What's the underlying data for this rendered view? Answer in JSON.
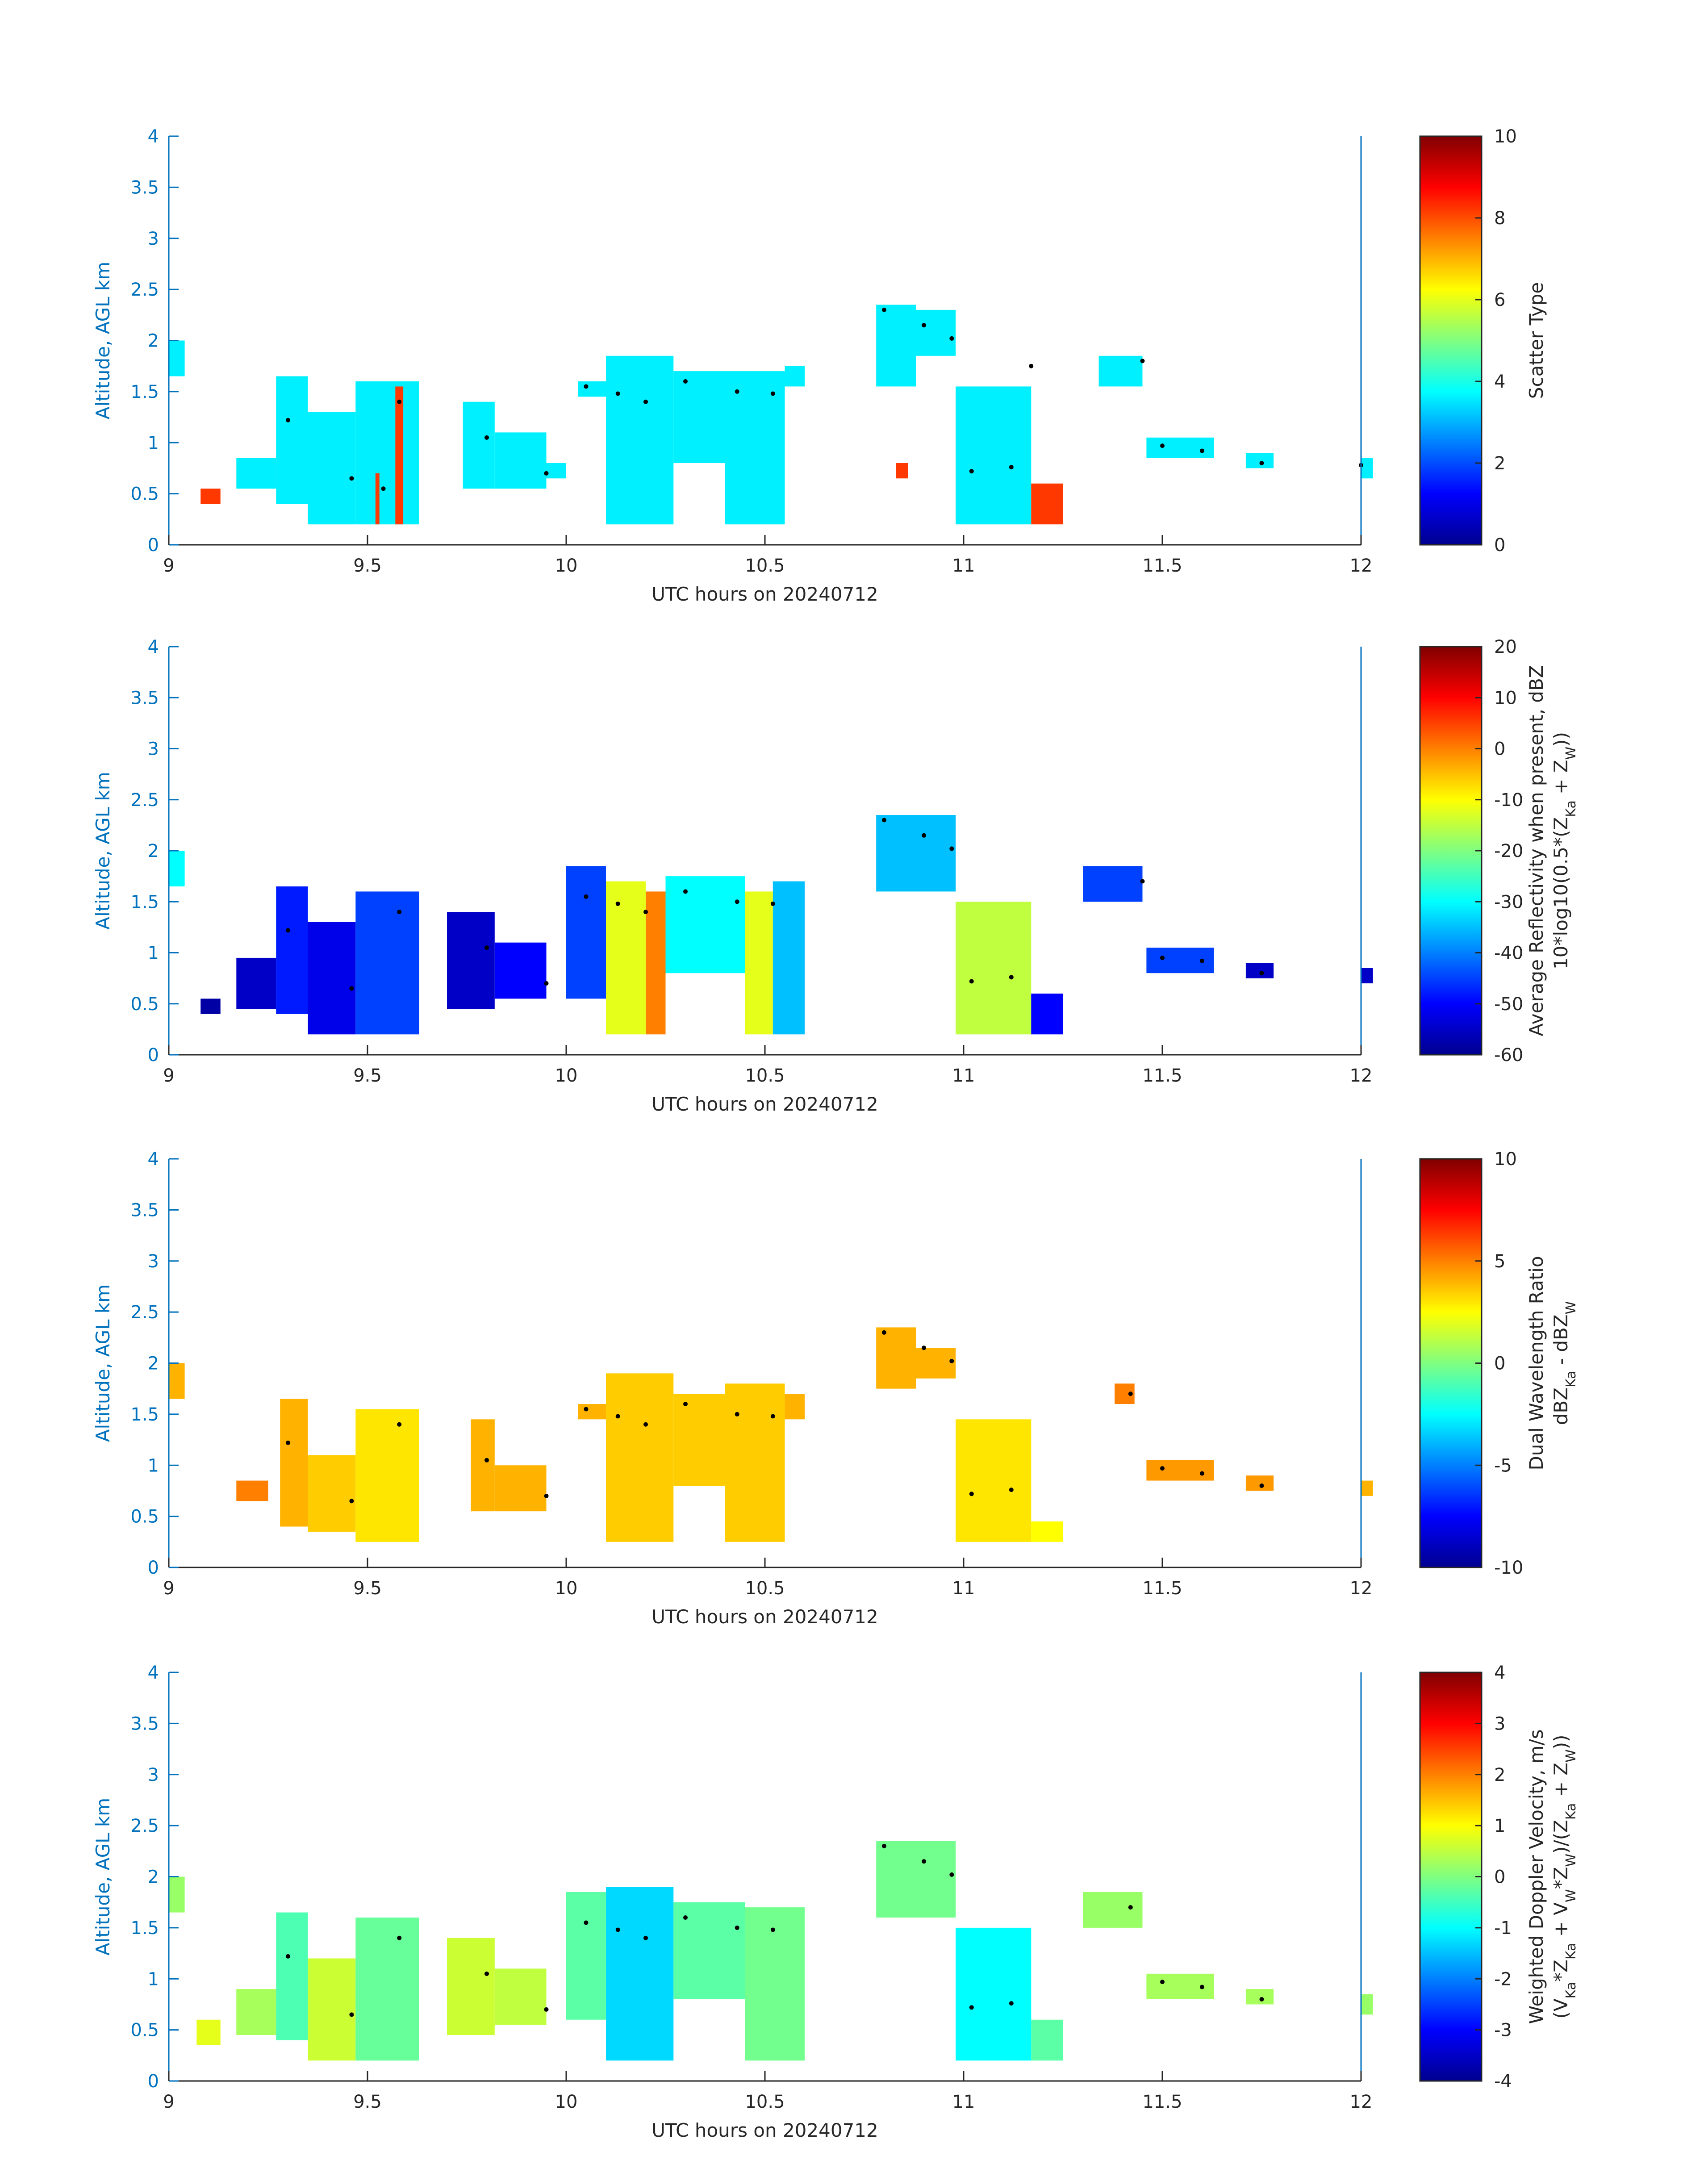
{
  "colormap": [
    "#00008f",
    "#0000ff",
    "#0080ff",
    "#00ffff",
    "#80ff80",
    "#ffff00",
    "#ff8000",
    "#ff0000",
    "#800000"
  ],
  "axis_color": "#0072bd",
  "chart_data": [
    {
      "type": "heatmap",
      "xlabel": "UTC hours on 20240712",
      "ylabel": "Altitude, AGL km",
      "xlim": [
        9,
        12
      ],
      "ylim": [
        0,
        4
      ],
      "xticks": [
        "9",
        "9.5",
        "10",
        "10.5",
        "11",
        "11.5",
        "12"
      ],
      "yticks": [
        "0",
        "0.5",
        "1",
        "1.5",
        "2",
        "2.5",
        "3",
        "3.5",
        "4"
      ],
      "colorbar": {
        "label": "Scatter Type",
        "label2": "",
        "clim": [
          0,
          10
        ],
        "ticks": [
          "0",
          "2",
          "4",
          "6",
          "8",
          "10"
        ]
      },
      "cells": [
        {
          "x0": 9.0,
          "x1": 9.04,
          "y0": 1.65,
          "y1": 2.0,
          "v": 3.6
        },
        {
          "x0": 9.08,
          "x1": 9.13,
          "y0": 0.4,
          "y1": 0.55,
          "v": 8.2
        },
        {
          "x0": 9.17,
          "x1": 9.27,
          "y0": 0.55,
          "y1": 0.85,
          "v": 3.6
        },
        {
          "x0": 9.27,
          "x1": 9.35,
          "y0": 0.4,
          "y1": 1.65,
          "v": 3.6
        },
        {
          "x0": 9.35,
          "x1": 9.47,
          "y0": 0.2,
          "y1": 1.3,
          "v": 3.6
        },
        {
          "x0": 9.47,
          "x1": 9.63,
          "y0": 0.2,
          "y1": 1.6,
          "v": 3.6
        },
        {
          "x0": 9.57,
          "x1": 9.59,
          "y0": 0.2,
          "y1": 1.55,
          "v": 8.2
        },
        {
          "x0": 9.52,
          "x1": 9.53,
          "y0": 0.2,
          "y1": 0.7,
          "v": 8.2
        },
        {
          "x0": 9.74,
          "x1": 9.82,
          "y0": 0.55,
          "y1": 1.4,
          "v": 3.6
        },
        {
          "x0": 9.82,
          "x1": 9.95,
          "y0": 0.55,
          "y1": 1.1,
          "v": 3.6
        },
        {
          "x0": 9.95,
          "x1": 10.0,
          "y0": 0.65,
          "y1": 0.8,
          "v": 3.6
        },
        {
          "x0": 10.03,
          "x1": 10.1,
          "y0": 1.45,
          "y1": 1.6,
          "v": 3.6
        },
        {
          "x0": 10.1,
          "x1": 10.27,
          "y0": 0.2,
          "y1": 1.85,
          "v": 3.6
        },
        {
          "x0": 10.27,
          "x1": 10.4,
          "y0": 0.8,
          "y1": 1.7,
          "v": 3.6
        },
        {
          "x0": 10.4,
          "x1": 10.55,
          "y0": 0.2,
          "y1": 1.7,
          "v": 3.6
        },
        {
          "x0": 10.55,
          "x1": 10.6,
          "y0": 1.55,
          "y1": 1.75,
          "v": 3.6
        },
        {
          "x0": 10.78,
          "x1": 10.88,
          "y0": 1.55,
          "y1": 2.35,
          "v": 3.6
        },
        {
          "x0": 10.88,
          "x1": 10.98,
          "y0": 1.85,
          "y1": 2.3,
          "v": 3.6
        },
        {
          "x0": 10.98,
          "x1": 11.17,
          "y0": 0.2,
          "y1": 1.55,
          "v": 3.6
        },
        {
          "x0": 11.17,
          "x1": 11.25,
          "y0": 0.2,
          "y1": 0.6,
          "v": 8.2
        },
        {
          "x0": 10.83,
          "x1": 10.86,
          "y0": 0.65,
          "y1": 0.8,
          "v": 8.2
        },
        {
          "x0": 11.34,
          "x1": 11.45,
          "y0": 1.55,
          "y1": 1.85,
          "v": 3.6
        },
        {
          "x0": 11.46,
          "x1": 11.63,
          "y0": 0.85,
          "y1": 1.05,
          "v": 3.6
        },
        {
          "x0": 11.71,
          "x1": 11.78,
          "y0": 0.75,
          "y1": 0.9,
          "v": 3.6
        },
        {
          "x0": 12.0,
          "x1": 12.03,
          "y0": 0.65,
          "y1": 0.85,
          "v": 3.6
        }
      ],
      "dots": [
        [
          9.3,
          1.22
        ],
        [
          9.46,
          0.65
        ],
        [
          9.54,
          0.55
        ],
        [
          9.58,
          1.4
        ],
        [
          9.8,
          1.05
        ],
        [
          9.95,
          0.7
        ],
        [
          10.05,
          1.55
        ],
        [
          10.13,
          1.48
        ],
        [
          10.2,
          1.4
        ],
        [
          10.3,
          1.6
        ],
        [
          10.43,
          1.5
        ],
        [
          10.52,
          1.48
        ],
        [
          10.8,
          2.3
        ],
        [
          10.9,
          2.15
        ],
        [
          10.97,
          2.02
        ],
        [
          11.02,
          0.72
        ],
        [
          11.12,
          0.76
        ],
        [
          11.17,
          1.75
        ],
        [
          11.45,
          1.8
        ],
        [
          11.5,
          0.97
        ],
        [
          11.6,
          0.92
        ],
        [
          11.75,
          0.8
        ],
        [
          12.0,
          0.78
        ]
      ]
    },
    {
      "type": "heatmap",
      "xlabel": "UTC hours on 20240712",
      "ylabel": "Altitude, AGL km",
      "xlim": [
        9,
        12
      ],
      "ylim": [
        0,
        4
      ],
      "xticks": [
        "9",
        "9.5",
        "10",
        "10.5",
        "11",
        "11.5",
        "12"
      ],
      "yticks": [
        "0",
        "0.5",
        "1",
        "1.5",
        "2",
        "2.5",
        "3",
        "3.5",
        "4"
      ],
      "colorbar": {
        "label": "Average Reflectivity when present, dBZ",
        "label2": "10*log10(0.5*(Z_Ka + Z_W))",
        "clim": [
          -60,
          20
        ],
        "ticks": [
          "-60",
          "-50",
          "-40",
          "-30",
          "-20",
          "-10",
          "0",
          "10",
          "20"
        ]
      },
      "cells": [
        {
          "x0": 9.0,
          "x1": 9.04,
          "y0": 1.65,
          "y1": 2.0,
          "v": -30
        },
        {
          "x0": 9.08,
          "x1": 9.13,
          "y0": 0.4,
          "y1": 0.55,
          "v": -58
        },
        {
          "x0": 9.17,
          "x1": 9.27,
          "y0": 0.45,
          "y1": 0.95,
          "v": -55
        },
        {
          "x0": 9.27,
          "x1": 9.35,
          "y0": 0.4,
          "y1": 1.65,
          "v": -48
        },
        {
          "x0": 9.35,
          "x1": 9.47,
          "y0": 0.2,
          "y1": 1.3,
          "v": -52
        },
        {
          "x0": 9.47,
          "x1": 9.63,
          "y0": 0.2,
          "y1": 1.6,
          "v": -45
        },
        {
          "x0": 9.7,
          "x1": 9.82,
          "y0": 0.45,
          "y1": 1.4,
          "v": -55
        },
        {
          "x0": 9.82,
          "x1": 9.95,
          "y0": 0.55,
          "y1": 1.1,
          "v": -50
        },
        {
          "x0": 10.0,
          "x1": 10.1,
          "y0": 0.55,
          "y1": 1.85,
          "v": -45
        },
        {
          "x0": 10.1,
          "x1": 10.2,
          "y0": 0.2,
          "y1": 1.7,
          "v": -12
        },
        {
          "x0": 10.2,
          "x1": 10.25,
          "y0": 0.2,
          "y1": 1.6,
          "v": 0
        },
        {
          "x0": 10.25,
          "x1": 10.45,
          "y0": 0.8,
          "y1": 1.75,
          "v": -30
        },
        {
          "x0": 10.45,
          "x1": 10.52,
          "y0": 0.2,
          "y1": 1.6,
          "v": -12
        },
        {
          "x0": 10.52,
          "x1": 10.6,
          "y0": 0.2,
          "y1": 1.7,
          "v": -35
        },
        {
          "x0": 10.78,
          "x1": 10.98,
          "y0": 1.6,
          "y1": 2.35,
          "v": -35
        },
        {
          "x0": 10.98,
          "x1": 11.17,
          "y0": 0.2,
          "y1": 1.5,
          "v": -15
        },
        {
          "x0": 11.17,
          "x1": 11.25,
          "y0": 0.2,
          "y1": 0.6,
          "v": -50
        },
        {
          "x0": 11.3,
          "x1": 11.45,
          "y0": 1.5,
          "y1": 1.85,
          "v": -45
        },
        {
          "x0": 11.46,
          "x1": 11.63,
          "y0": 0.8,
          "y1": 1.05,
          "v": -45
        },
        {
          "x0": 11.71,
          "x1": 11.78,
          "y0": 0.75,
          "y1": 0.9,
          "v": -55
        },
        {
          "x0": 12.0,
          "x1": 12.03,
          "y0": 0.7,
          "y1": 0.85,
          "v": -55
        }
      ],
      "dots": [
        [
          9.3,
          1.22
        ],
        [
          9.46,
          0.65
        ],
        [
          9.58,
          1.4
        ],
        [
          9.8,
          1.05
        ],
        [
          9.95,
          0.7
        ],
        [
          10.05,
          1.55
        ],
        [
          10.13,
          1.48
        ],
        [
          10.2,
          1.4
        ],
        [
          10.3,
          1.6
        ],
        [
          10.43,
          1.5
        ],
        [
          10.52,
          1.48
        ],
        [
          10.8,
          2.3
        ],
        [
          10.9,
          2.15
        ],
        [
          10.97,
          2.02
        ],
        [
          11.02,
          0.72
        ],
        [
          11.12,
          0.76
        ],
        [
          11.45,
          1.7
        ],
        [
          11.5,
          0.95
        ],
        [
          11.6,
          0.92
        ],
        [
          11.75,
          0.8
        ]
      ]
    },
    {
      "type": "heatmap",
      "xlabel": "UTC hours on 20240712",
      "ylabel": "Altitude, AGL km",
      "xlim": [
        9,
        12
      ],
      "ylim": [
        0,
        4
      ],
      "xticks": [
        "9",
        "9.5",
        "10",
        "10.5",
        "11",
        "11.5",
        "12"
      ],
      "yticks": [
        "0",
        "0.5",
        "1",
        "1.5",
        "2",
        "2.5",
        "3",
        "3.5",
        "4"
      ],
      "colorbar": {
        "label": "Dual Wavelength Ratio",
        "label2": "dBZ_Ka - dBZ_W",
        "clim": [
          -10,
          10
        ],
        "ticks": [
          "-10",
          "-5",
          "0",
          "5",
          "10"
        ]
      },
      "cells": [
        {
          "x0": 9.0,
          "x1": 9.04,
          "y0": 1.65,
          "y1": 2.0,
          "v": 4
        },
        {
          "x0": 9.17,
          "x1": 9.25,
          "y0": 0.65,
          "y1": 0.85,
          "v": 5
        },
        {
          "x0": 9.28,
          "x1": 9.35,
          "y0": 0.4,
          "y1": 1.65,
          "v": 4
        },
        {
          "x0": 9.35,
          "x1": 9.47,
          "y0": 0.35,
          "y1": 1.1,
          "v": 3.5
        },
        {
          "x0": 9.47,
          "x1": 9.63,
          "y0": 0.25,
          "y1": 1.55,
          "v": 3
        },
        {
          "x0": 9.76,
          "x1": 9.82,
          "y0": 0.55,
          "y1": 1.45,
          "v": 4
        },
        {
          "x0": 9.82,
          "x1": 9.95,
          "y0": 0.55,
          "y1": 1.0,
          "v": 4
        },
        {
          "x0": 10.03,
          "x1": 10.1,
          "y0": 1.45,
          "y1": 1.6,
          "v": 4
        },
        {
          "x0": 10.1,
          "x1": 10.27,
          "y0": 0.25,
          "y1": 1.9,
          "v": 3.5
        },
        {
          "x0": 10.27,
          "x1": 10.4,
          "y0": 0.8,
          "y1": 1.7,
          "v": 3.5
        },
        {
          "x0": 10.4,
          "x1": 10.55,
          "y0": 0.25,
          "y1": 1.8,
          "v": 3.5
        },
        {
          "x0": 10.55,
          "x1": 10.6,
          "y0": 1.45,
          "y1": 1.7,
          "v": 4
        },
        {
          "x0": 10.78,
          "x1": 10.88,
          "y0": 1.75,
          "y1": 2.35,
          "v": 4
        },
        {
          "x0": 10.88,
          "x1": 10.98,
          "y0": 1.85,
          "y1": 2.15,
          "v": 4
        },
        {
          "x0": 10.98,
          "x1": 11.17,
          "y0": 0.25,
          "y1": 1.45,
          "v": 3
        },
        {
          "x0": 11.17,
          "x1": 11.25,
          "y0": 0.25,
          "y1": 0.45,
          "v": 2.5
        },
        {
          "x0": 11.38,
          "x1": 11.43,
          "y0": 1.6,
          "y1": 1.8,
          "v": 5
        },
        {
          "x0": 11.46,
          "x1": 11.63,
          "y0": 0.85,
          "y1": 1.05,
          "v": 4.5
        },
        {
          "x0": 11.71,
          "x1": 11.78,
          "y0": 0.75,
          "y1": 0.9,
          "v": 4.5
        },
        {
          "x0": 12.0,
          "x1": 12.03,
          "y0": 0.7,
          "y1": 0.85,
          "v": 4
        }
      ],
      "dots": [
        [
          9.3,
          1.22
        ],
        [
          9.46,
          0.65
        ],
        [
          9.58,
          1.4
        ],
        [
          9.8,
          1.05
        ],
        [
          9.95,
          0.7
        ],
        [
          10.05,
          1.55
        ],
        [
          10.13,
          1.48
        ],
        [
          10.2,
          1.4
        ],
        [
          10.3,
          1.6
        ],
        [
          10.43,
          1.5
        ],
        [
          10.52,
          1.48
        ],
        [
          10.8,
          2.3
        ],
        [
          10.9,
          2.15
        ],
        [
          10.97,
          2.02
        ],
        [
          11.02,
          0.72
        ],
        [
          11.12,
          0.76
        ],
        [
          11.42,
          1.7
        ],
        [
          11.5,
          0.97
        ],
        [
          11.6,
          0.92
        ],
        [
          11.75,
          0.8
        ]
      ]
    },
    {
      "type": "heatmap",
      "xlabel": "UTC hours on 20240712",
      "ylabel": "Altitude, AGL km",
      "xlim": [
        9,
        12
      ],
      "ylim": [
        0,
        4
      ],
      "xticks": [
        "9",
        "9.5",
        "10",
        "10.5",
        "11",
        "11.5",
        "12"
      ],
      "yticks": [
        "0",
        "0.5",
        "1",
        "1.5",
        "2",
        "2.5",
        "3",
        "3.5",
        "4"
      ],
      "colorbar": {
        "label": "Weighted Doppler Velocity, m/s",
        "label2": "(V_Ka*Z_Ka + V_W*Z_W)/(Z_Ka + Z_W))",
        "clim": [
          -4,
          4
        ],
        "ticks": [
          "-4",
          "-3",
          "-2",
          "-1",
          "0",
          "1",
          "2",
          "3",
          "4"
        ]
      },
      "cells": [
        {
          "x0": 9.0,
          "x1": 9.04,
          "y0": 1.65,
          "y1": 2.0,
          "v": 0.2
        },
        {
          "x0": 9.07,
          "x1": 9.13,
          "y0": 0.35,
          "y1": 0.6,
          "v": 0.8
        },
        {
          "x0": 9.17,
          "x1": 9.27,
          "y0": 0.45,
          "y1": 0.9,
          "v": 0.3
        },
        {
          "x0": 9.27,
          "x1": 9.35,
          "y0": 0.4,
          "y1": 1.65,
          "v": -0.4
        },
        {
          "x0": 9.35,
          "x1": 9.47,
          "y0": 0.2,
          "y1": 1.2,
          "v": 0.6
        },
        {
          "x0": 9.47,
          "x1": 9.63,
          "y0": 0.2,
          "y1": 1.6,
          "v": -0.2
        },
        {
          "x0": 9.7,
          "x1": 9.82,
          "y0": 0.45,
          "y1": 1.4,
          "v": 0.6
        },
        {
          "x0": 9.82,
          "x1": 9.95,
          "y0": 0.55,
          "y1": 1.1,
          "v": 0.5
        },
        {
          "x0": 10.0,
          "x1": 10.1,
          "y0": 0.6,
          "y1": 1.85,
          "v": -0.3
        },
        {
          "x0": 10.1,
          "x1": 10.27,
          "y0": 0.2,
          "y1": 1.9,
          "v": -1.3
        },
        {
          "x0": 10.27,
          "x1": 10.45,
          "y0": 0.8,
          "y1": 1.75,
          "v": -0.3
        },
        {
          "x0": 10.45,
          "x1": 10.6,
          "y0": 0.2,
          "y1": 1.7,
          "v": -0.1
        },
        {
          "x0": 10.78,
          "x1": 10.98,
          "y0": 1.6,
          "y1": 2.35,
          "v": -0.1
        },
        {
          "x0": 10.98,
          "x1": 11.17,
          "y0": 0.2,
          "y1": 1.5,
          "v": -1.0
        },
        {
          "x0": 11.17,
          "x1": 11.25,
          "y0": 0.2,
          "y1": 0.6,
          "v": -0.3
        },
        {
          "x0": 11.3,
          "x1": 11.45,
          "y0": 1.5,
          "y1": 1.85,
          "v": 0.2
        },
        {
          "x0": 11.46,
          "x1": 11.63,
          "y0": 0.8,
          "y1": 1.05,
          "v": 0.3
        },
        {
          "x0": 11.71,
          "x1": 11.78,
          "y0": 0.75,
          "y1": 0.9,
          "v": 0.3
        },
        {
          "x0": 12.0,
          "x1": 12.03,
          "y0": 0.65,
          "y1": 0.85,
          "v": 0.2
        }
      ],
      "dots": [
        [
          9.3,
          1.22
        ],
        [
          9.46,
          0.65
        ],
        [
          9.58,
          1.4
        ],
        [
          9.8,
          1.05
        ],
        [
          9.95,
          0.7
        ],
        [
          10.05,
          1.55
        ],
        [
          10.13,
          1.48
        ],
        [
          10.2,
          1.4
        ],
        [
          10.3,
          1.6
        ],
        [
          10.43,
          1.5
        ],
        [
          10.52,
          1.48
        ],
        [
          10.8,
          2.3
        ],
        [
          10.9,
          2.15
        ],
        [
          10.97,
          2.02
        ],
        [
          11.02,
          0.72
        ],
        [
          11.12,
          0.76
        ],
        [
          11.42,
          1.7
        ],
        [
          11.5,
          0.97
        ],
        [
          11.6,
          0.92
        ],
        [
          11.75,
          0.8
        ]
      ]
    }
  ]
}
